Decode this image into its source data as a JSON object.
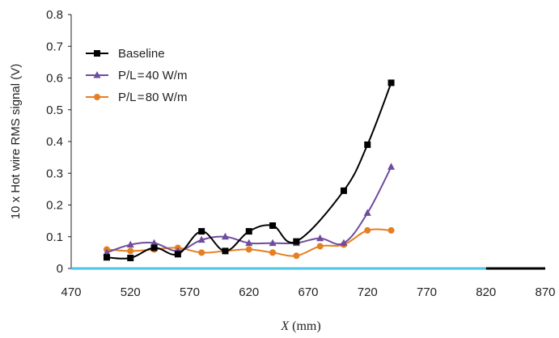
{
  "chart_data": {
    "type": "line",
    "xlabel_var": "X",
    "xlabel_unit": " (mm)",
    "ylabel": "10 x Hot wire RMS signal (V)",
    "xlim": [
      470,
      870
    ],
    "ylim": [
      0,
      0.8
    ],
    "xticks": [
      "470",
      "520",
      "570",
      "620",
      "670",
      "720",
      "770",
      "820",
      "870"
    ],
    "yticks": [
      "0",
      "0.1",
      "0.2",
      "0.3",
      "0.4",
      "0.5",
      "0.6",
      "0.7",
      "0.8"
    ],
    "legend_position": "top-left",
    "baseline_line": {
      "segments": [
        {
          "x_start": 470,
          "x_end": 820,
          "color": "#4dc3e6"
        },
        {
          "x_start": 820,
          "x_end": 870,
          "color": "#000000"
        }
      ]
    },
    "series": [
      {
        "name": "Baseline",
        "color": "#000000",
        "marker": "square",
        "x": [
          500,
          520,
          540,
          560,
          580,
          600,
          620,
          640,
          660,
          700,
          720,
          740
        ],
        "y": [
          0.035,
          0.033,
          0.065,
          0.045,
          0.117,
          0.055,
          0.117,
          0.135,
          0.085,
          0.245,
          0.39,
          0.585
        ]
      },
      {
        "name": "P/L = 40 W/m",
        "color": "#6e4c9e",
        "marker": "triangle",
        "x": [
          500,
          520,
          540,
          560,
          580,
          600,
          620,
          640,
          660,
          680,
          700,
          720,
          740
        ],
        "y": [
          0.05,
          0.075,
          0.08,
          0.055,
          0.09,
          0.1,
          0.08,
          0.08,
          0.08,
          0.095,
          0.08,
          0.175,
          0.32
        ]
      },
      {
        "name": "P/L = 80 W/m",
        "color": "#e67e22",
        "marker": "circle",
        "x": [
          500,
          520,
          540,
          560,
          580,
          600,
          620,
          640,
          660,
          680,
          700,
          720,
          740
        ],
        "y": [
          0.06,
          0.055,
          0.06,
          0.065,
          0.05,
          0.055,
          0.06,
          0.05,
          0.04,
          0.07,
          0.075,
          0.12,
          0.12
        ]
      }
    ]
  }
}
